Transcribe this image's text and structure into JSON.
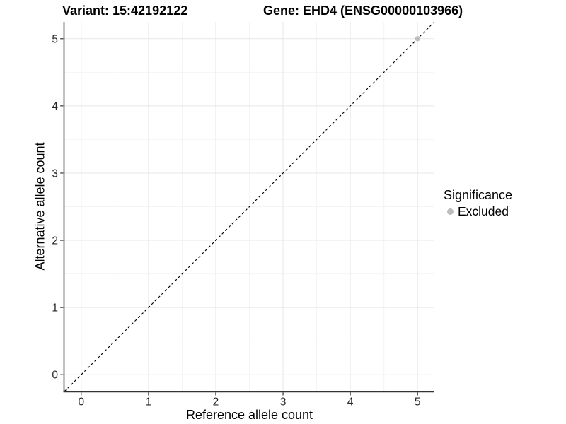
{
  "chart_data": {
    "type": "scatter",
    "title_left": "Variant: 15:42192122",
    "title_right": "Gene: EHD4 (ENSG00000103966)",
    "xlabel": "Reference allele count",
    "ylabel": "Alternative allele count",
    "xlim": [
      -0.25,
      5.25
    ],
    "ylim": [
      -0.25,
      5.25
    ],
    "xticks": [
      0,
      1,
      2,
      3,
      4,
      5
    ],
    "yticks": [
      0,
      1,
      2,
      3,
      4,
      5
    ],
    "grid": {
      "major": true,
      "minor": true
    },
    "reference_line": {
      "kind": "abline",
      "intercept": 0,
      "slope": 1,
      "style": "dashed",
      "color": "#000000"
    },
    "series": [
      {
        "name": "Excluded",
        "marker": "circle",
        "color": "#bdbdbd",
        "points": [
          {
            "x": 5,
            "y": 5
          }
        ]
      }
    ],
    "legend": {
      "title": "Significance",
      "position": "right",
      "items": [
        {
          "label": "Excluded",
          "color": "#bdbdbd"
        }
      ]
    },
    "colors": {
      "panel_background": "#ffffff",
      "grid_major": "#e7e7e7",
      "grid_minor": "#f4f4f4",
      "axis_line": "#333333",
      "tick_mark": "#333333",
      "tick_text": "#262626"
    }
  }
}
